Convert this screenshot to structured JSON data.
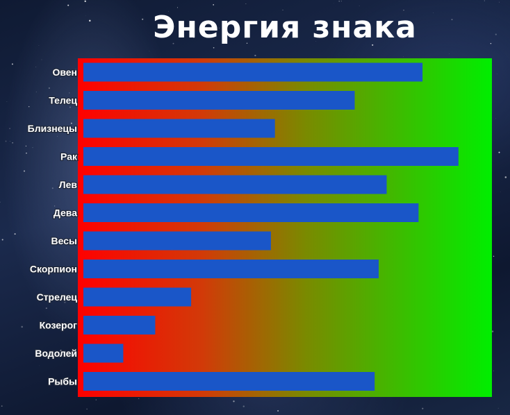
{
  "chart_data": {
    "type": "bar",
    "orientation": "horizontal",
    "title": "Энергия знака",
    "categories": [
      "Овен",
      "Телец",
      "Близнецы",
      "Рак",
      "Лев",
      "Дева",
      "Весы",
      "Скорпион",
      "Стрелец",
      "Козерог",
      "Водолей",
      "Рыбы"
    ],
    "values": [
      85,
      68,
      48,
      94,
      76,
      84,
      47,
      74,
      27,
      18,
      10,
      73
    ],
    "xlim": [
      0,
      100
    ],
    "grid": false,
    "legend": "none",
    "bar_color": "#1a56c8",
    "background_gradient": [
      "#ff0000",
      "#00ee00"
    ]
  }
}
